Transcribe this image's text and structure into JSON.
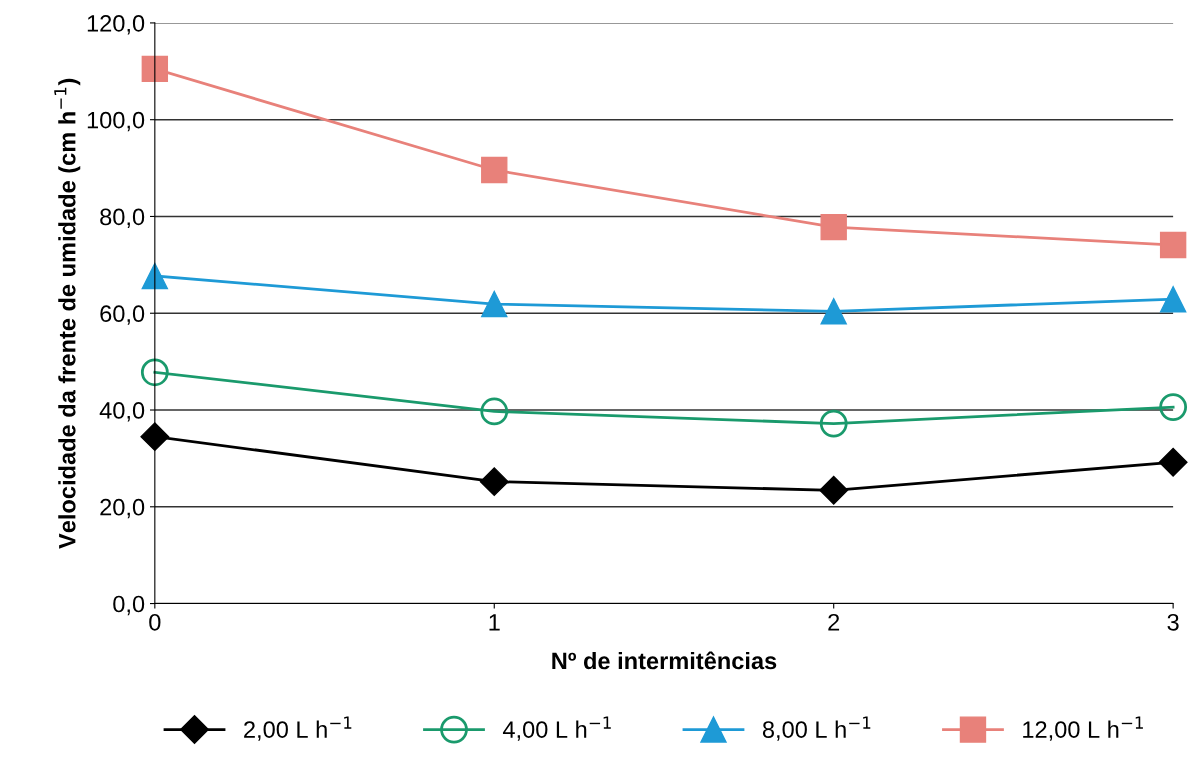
{
  "chart_data": {
    "type": "line",
    "xlabel": "Nº de intermitências",
    "ylabel": "Velocidade da frente de umidade (cm h$^{−1}$)",
    "x": [
      0,
      1,
      2,
      3
    ],
    "xlim": [
      0,
      3
    ],
    "xticks": [
      0,
      1,
      2,
      3
    ],
    "ylim": [
      0,
      120
    ],
    "yticks": [
      {
        "value": 0,
        "label": "0,0"
      },
      {
        "value": 20,
        "label": "20,0"
      },
      {
        "value": 40,
        "label": "40,0"
      },
      {
        "value": 60,
        "label": "60,0"
      },
      {
        "value": 80,
        "label": "80,0"
      },
      {
        "value": 100,
        "label": "100,0"
      },
      {
        "value": 120,
        "label": "120,0"
      }
    ],
    "grid": "y",
    "legend": "bottom",
    "line_style": "solid",
    "series": [
      {
        "name": "2,00 L h$^{−1}$",
        "color": "#000000",
        "marker": "diamond",
        "values": [
          34.5,
          25.2,
          23.4,
          29.2
        ]
      },
      {
        "name": "4,00 L h$^{−1}$",
        "color": "#1a9a6c",
        "marker": "circle",
        "values": [
          47.8,
          39.7,
          37.2,
          40.6
        ]
      },
      {
        "name": "8,00 L h$^{−1}$",
        "color": "#1e9ad6",
        "marker": "triangle",
        "values": [
          67.7,
          61.9,
          60.4,
          62.9
        ]
      },
      {
        "name": "12,00 L h$^{−1}$",
        "color": "#e8817a",
        "marker": "square",
        "values": [
          110.5,
          89.6,
          77.8,
          74.1
        ]
      }
    ]
  }
}
